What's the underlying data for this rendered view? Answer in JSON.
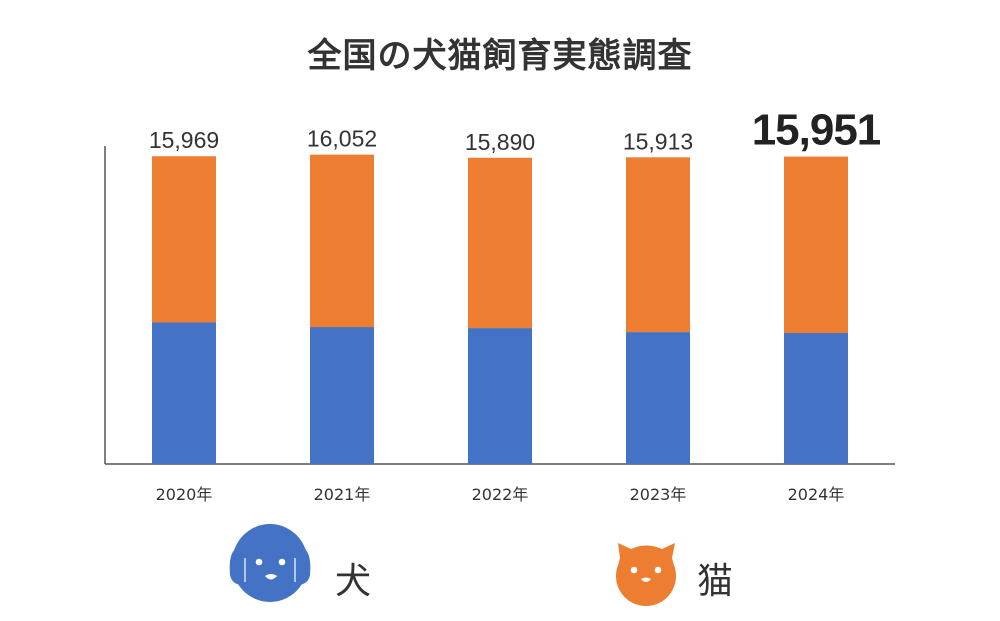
{
  "chart_data": {
    "type": "bar",
    "stacked": true,
    "title": "全国の犬猫飼育実態調査",
    "categories": [
      "2020年",
      "2021年",
      "2022年",
      "2023年",
      "2024年"
    ],
    "series": [
      {
        "name": "犬",
        "color": "#4472C4",
        "values": [
          7341,
          7106,
          7053,
          6844,
          6796
        ]
      },
      {
        "name": "猫",
        "color": "#ED7D31",
        "values": [
          8628,
          8946,
          8837,
          9069,
          9155
        ]
      }
    ],
    "totals": [
      "15,969",
      "16,052",
      "15,890",
      "15,913",
      "15,951"
    ],
    "highlighted_index": 4,
    "ylim": [
      0,
      16500
    ],
    "grid": false,
    "legend_placement": "bottom",
    "legend_icons": [
      "dog-face-icon",
      "cat-face-icon"
    ]
  }
}
